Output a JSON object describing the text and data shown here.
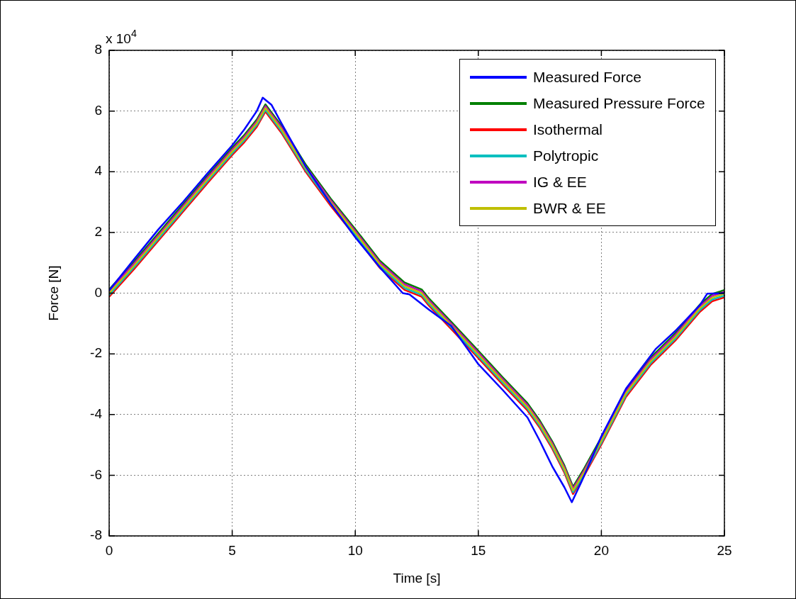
{
  "chart_data": {
    "type": "line",
    "xlabel": "Time [s]",
    "ylabel": "Force [N]",
    "annotations": [
      "x 10$^{4}$"
    ],
    "xlim": [
      0,
      25
    ],
    "xticks": [
      0,
      5,
      10,
      15,
      20,
      25
    ],
    "ylim": [
      -8,
      8
    ],
    "yticks": [
      -8,
      -6,
      -4,
      -2,
      0,
      2,
      4,
      6,
      8
    ],
    "grid": true,
    "legend": "top right",
    "marker": "none",
    "line_style": "solid",
    "x": [
      0,
      1,
      2,
      3,
      4,
      5,
      5.5,
      6,
      6.35,
      7,
      8,
      9,
      10,
      11,
      12,
      12.7,
      13,
      14,
      15,
      16,
      17,
      17.5,
      18,
      18.5,
      18.85,
      19.3,
      20,
      21,
      22,
      23,
      24,
      24.5,
      25
    ],
    "series": [
      {
        "name": "Measured Force",
        "color": "#0000ff",
        "x": [
          0,
          1,
          2,
          3,
          4,
          5,
          5.5,
          6,
          6.24,
          6.6,
          7,
          8,
          9,
          10,
          11,
          11.93,
          12.2,
          13,
          13.9,
          15,
          16,
          17,
          17.5,
          18,
          18.5,
          18.8,
          19.2,
          20,
          21,
          22.2,
          23,
          24,
          24.3,
          25
        ],
        "values": [
          0.09,
          1.1,
          2.1,
          3.0,
          3.95,
          4.87,
          5.4,
          6.0,
          6.44,
          6.2,
          5.6,
          4.15,
          2.95,
          1.84,
          0.85,
          0,
          -0.04,
          -0.55,
          -1.08,
          -2.34,
          -3.2,
          -4.1,
          -4.87,
          -5.7,
          -6.4,
          -6.89,
          -6.2,
          -4.72,
          -3.15,
          -1.85,
          -1.25,
          -0.4,
          -0.02,
          0
        ]
      },
      {
        "name": "Measured Pressure Force",
        "color": "#008000",
        "values": [
          0.12,
          1.02,
          1.97,
          2.92,
          3.87,
          4.79,
          5.22,
          5.72,
          6.22,
          5.52,
          4.22,
          3.12,
          2.11,
          1.07,
          0.35,
          0.12,
          -0.18,
          -1.03,
          -1.9,
          -2.78,
          -3.63,
          -4.2,
          -4.88,
          -5.68,
          -6.38,
          -5.78,
          -4.75,
          -3.18,
          -2.13,
          -1.33,
          -0.38,
          -0.03,
          0.1
        ]
      },
      {
        "name": "Isothermal",
        "color": "#ff0000",
        "values": [
          -0.12,
          0.78,
          1.73,
          2.68,
          3.63,
          4.55,
          4.98,
          5.48,
          5.98,
          5.28,
          3.98,
          2.88,
          1.87,
          0.83,
          0.11,
          -0.12,
          -0.42,
          -1.27,
          -2.14,
          -3.02,
          -3.87,
          -4.44,
          -5.12,
          -5.92,
          -6.62,
          -6.02,
          -4.99,
          -3.42,
          -2.37,
          -1.57,
          -0.62,
          -0.27,
          -0.14
        ]
      },
      {
        "name": "Polytropic",
        "color": "#00bfbf",
        "values": [
          -0.06,
          0.84,
          1.79,
          2.74,
          3.69,
          4.61,
          5.04,
          5.54,
          6.04,
          5.34,
          4.04,
          2.94,
          1.93,
          0.89,
          0.17,
          -0.06,
          -0.36,
          -1.21,
          -2.08,
          -2.96,
          -3.81,
          -4.38,
          -5.06,
          -5.86,
          -6.56,
          -5.96,
          -4.93,
          -3.36,
          -2.31,
          -1.51,
          -0.56,
          -0.21,
          -0.08
        ]
      },
      {
        "name": "IG & EE",
        "color": "#bf00bf",
        "values": [
          0.06,
          0.96,
          1.91,
          2.86,
          3.81,
          4.73,
          5.16,
          5.66,
          6.16,
          5.46,
          4.16,
          3.06,
          2.05,
          1.01,
          0.29,
          0.06,
          -0.24,
          -1.09,
          -1.96,
          -2.84,
          -3.69,
          -4.26,
          -4.94,
          -5.74,
          -6.44,
          -5.84,
          -4.81,
          -3.24,
          -2.19,
          -1.39,
          -0.44,
          -0.09,
          0.04
        ]
      },
      {
        "name": "BWR & EE",
        "color": "#bfbf00",
        "values": [
          0,
          0.9,
          1.85,
          2.8,
          3.75,
          4.67,
          5.1,
          5.6,
          6.1,
          5.4,
          4.1,
          3.0,
          1.99,
          0.95,
          0.23,
          0,
          -0.3,
          -1.15,
          -2.02,
          -2.9,
          -3.75,
          -4.32,
          -5.0,
          -5.8,
          -6.5,
          -5.9,
          -4.87,
          -3.3,
          -2.25,
          -1.45,
          -0.5,
          -0.15,
          -0.02
        ]
      }
    ]
  }
}
